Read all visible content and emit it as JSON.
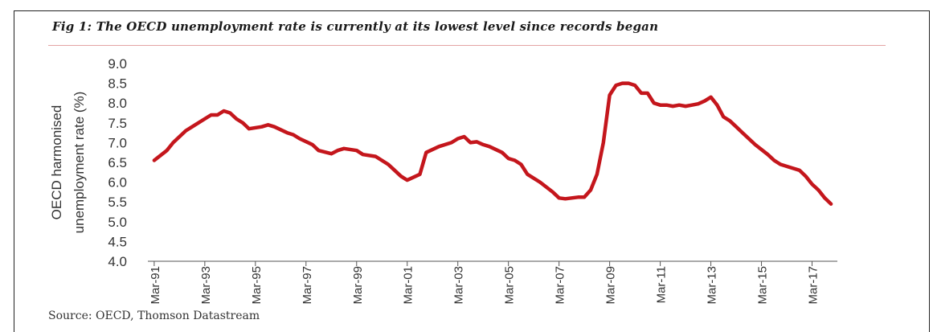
{
  "figure": {
    "title": "Fig 1: The OECD unemployment rate is currently at its lowest level since records began",
    "source": "Source: OECD, Thomson Datastream"
  },
  "colors": {
    "line": "#c4161c",
    "rule": "#e4a4a4",
    "axis": "#555555",
    "text": "#333333"
  },
  "chart_data": {
    "type": "line",
    "title": "",
    "xlabel": "",
    "ylabel": "OECD harmonised unemployment rate (%)",
    "ylabel_lines": [
      "OECD harmonised",
      "unemployment rate (%)"
    ],
    "ylim": [
      4.0,
      9.0
    ],
    "yticks": [
      "4.0",
      "4.5",
      "5.0",
      "5.5",
      "6.0",
      "6.5",
      "7.0",
      "7.5",
      "8.0",
      "8.5",
      "9.0"
    ],
    "xlim": [
      1991.0,
      2018.25
    ],
    "xticks": [
      {
        "label": "Mar-91",
        "x": 1991.25
      },
      {
        "label": "Mar-93",
        "x": 1993.25
      },
      {
        "label": "Mar-95",
        "x": 1995.25
      },
      {
        "label": "Mar-97",
        "x": 1997.25
      },
      {
        "label": "Mar-99",
        "x": 1999.25
      },
      {
        "label": "Mar-01",
        "x": 2001.25
      },
      {
        "label": "Mar-03",
        "x": 2003.25
      },
      {
        "label": "Mar-05",
        "x": 2005.25
      },
      {
        "label": "Mar-07",
        "x": 2007.25
      },
      {
        "label": "Mar-09",
        "x": 2009.25
      },
      {
        "label": "Mar-11",
        "x": 2011.25
      },
      {
        "label": "Mar-13",
        "x": 2013.25
      },
      {
        "label": "Mar-15",
        "x": 2015.25
      },
      {
        "label": "Mar-17",
        "x": 2017.25
      }
    ],
    "grid": false,
    "series": [
      {
        "name": "",
        "x": [
          1991.25,
          1991.75,
          1992.0,
          1992.5,
          1992.75,
          1993.25,
          1993.5,
          1993.75,
          1994.0,
          1994.25,
          1994.5,
          1994.75,
          1995.0,
          1995.5,
          1995.75,
          1996.0,
          1996.5,
          1996.75,
          1997.0,
          1997.5,
          1997.75,
          1998.25,
          1998.5,
          1998.75,
          1999.25,
          1999.5,
          2000.0,
          2000.5,
          2000.75,
          2001.0,
          2001.25,
          2001.75,
          2002.0,
          2002.5,
          2003.0,
          2003.25,
          2003.5,
          2003.75,
          2004.0,
          2004.25,
          2004.5,
          2005.0,
          2005.25,
          2005.5,
          2005.75,
          2006.0,
          2006.5,
          2007.0,
          2007.25,
          2007.5,
          2007.75,
          2008.0,
          2008.25,
          2008.5,
          2008.75,
          2009.0,
          2009.25,
          2009.5,
          2009.75,
          2010.0,
          2010.25,
          2010.5,
          2010.75,
          2011.0,
          2011.25,
          2011.5,
          2011.75,
          2012.0,
          2012.25,
          2012.5,
          2012.75,
          2013.0,
          2013.25,
          2013.5,
          2013.75,
          2014.0,
          2014.25,
          2014.5,
          2015.0,
          2015.5,
          2015.75,
          2016.0,
          2016.5,
          2016.75,
          2017.0,
          2017.25,
          2017.5,
          2017.75,
          2018.0
        ],
        "values": [
          6.55,
          6.8,
          7.0,
          7.3,
          7.4,
          7.6,
          7.7,
          7.7,
          7.8,
          7.75,
          7.6,
          7.5,
          7.35,
          7.4,
          7.45,
          7.4,
          7.25,
          7.2,
          7.1,
          6.95,
          6.8,
          6.72,
          6.8,
          6.85,
          6.8,
          6.7,
          6.65,
          6.45,
          6.3,
          6.15,
          6.05,
          6.2,
          6.75,
          6.9,
          7.0,
          7.1,
          7.15,
          7.0,
          7.02,
          6.95,
          6.9,
          6.75,
          6.6,
          6.55,
          6.45,
          6.2,
          6.0,
          5.75,
          5.6,
          5.58,
          5.6,
          5.62,
          5.62,
          5.8,
          6.2,
          7.0,
          8.2,
          8.45,
          8.5,
          8.5,
          8.45,
          8.25,
          8.25,
          8.0,
          7.95,
          7.95,
          7.92,
          7.95,
          7.92,
          7.95,
          7.98,
          8.05,
          8.15,
          7.95,
          7.65,
          7.55,
          7.4,
          7.25,
          6.95,
          6.7,
          6.55,
          6.45,
          6.35,
          6.3,
          6.15,
          5.95,
          5.8,
          5.6,
          5.45
        ]
      }
    ]
  }
}
